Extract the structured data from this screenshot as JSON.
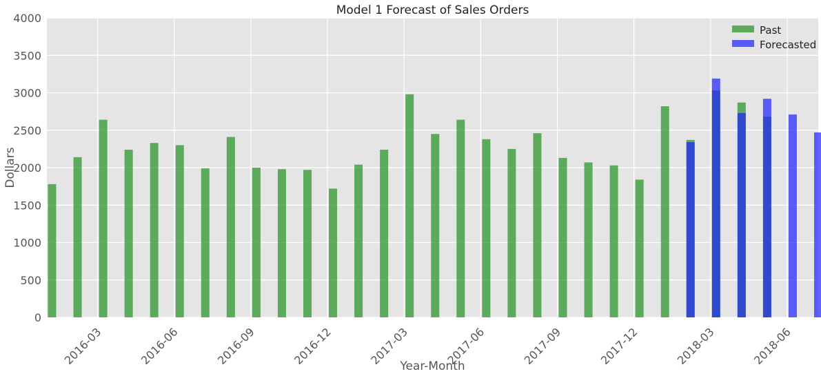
{
  "chart_data": {
    "type": "bar",
    "title": "Model 1 Forecast of Sales Orders",
    "xlabel": "Year-Month",
    "ylabel": "Dollars",
    "ylim": [
      0,
      4000
    ],
    "yticks": [
      0,
      500,
      1000,
      1500,
      2000,
      2500,
      3000,
      3500,
      4000
    ],
    "xticks": [
      "2016-03",
      "2016-06",
      "2016-09",
      "2016-12",
      "2017-03",
      "2017-06",
      "2017-09",
      "2017-12",
      "2018-03",
      "2018-06"
    ],
    "grid": true,
    "legend_position": "top-right",
    "categories": [
      "2016-01",
      "2016-02",
      "2016-03",
      "2016-04",
      "2016-05",
      "2016-06",
      "2016-07",
      "2016-08",
      "2016-09",
      "2016-10",
      "2016-11",
      "2016-12",
      "2017-01",
      "2017-02",
      "2017-03",
      "2017-04",
      "2017-05",
      "2017-06",
      "2017-07",
      "2017-08",
      "2017-09",
      "2017-10",
      "2017-11",
      "2017-12",
      "2018-01",
      "2018-02",
      "2018-03",
      "2018-04",
      "2018-05",
      "2018-06",
      "2018-07"
    ],
    "series": [
      {
        "name": "Past",
        "color": "#2e962e",
        "values": [
          1780,
          2140,
          2640,
          2240,
          2330,
          2300,
          1990,
          2410,
          2000,
          1980,
          1970,
          1720,
          2040,
          2240,
          2980,
          2450,
          2640,
          2380,
          2250,
          2460,
          2130,
          2070,
          2030,
          1840,
          2820,
          2370,
          3030,
          2870,
          2680,
          null,
          null
        ]
      },
      {
        "name": "Forecasted",
        "color": "#1f1fff",
        "values": [
          null,
          null,
          null,
          null,
          null,
          null,
          null,
          null,
          null,
          null,
          null,
          null,
          null,
          null,
          null,
          null,
          null,
          null,
          null,
          null,
          null,
          null,
          null,
          null,
          null,
          2340,
          3190,
          2730,
          2920,
          2710,
          2470
        ]
      }
    ]
  }
}
